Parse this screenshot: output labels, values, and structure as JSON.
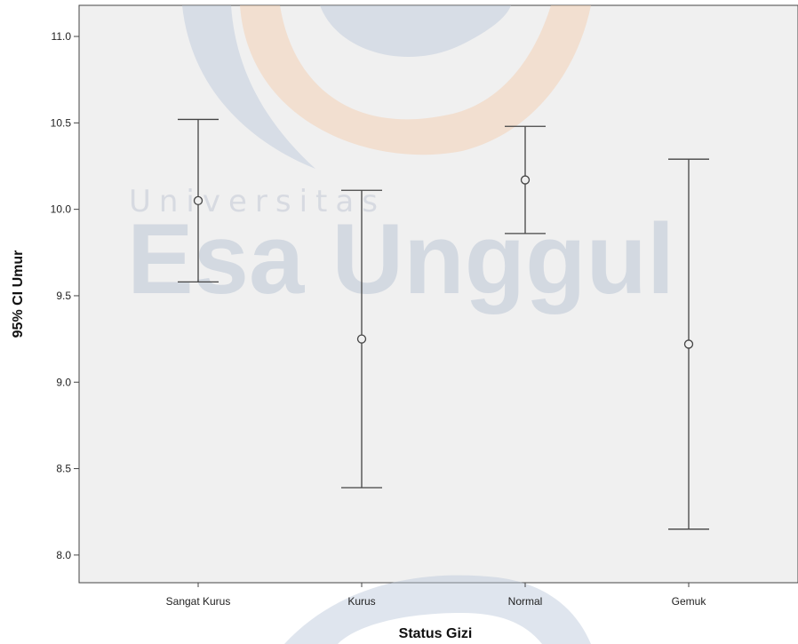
{
  "watermark": {
    "line1": "Universitas",
    "line2": "Esa Unggul",
    "colors": {
      "blue": "#9fb0c8",
      "orange": "#f3c9a8"
    }
  },
  "chart_data": {
    "type": "errorbar",
    "xlabel": "Status Gizi",
    "ylabel": "95% CI Umur",
    "categories": [
      "Sangat Kurus",
      "Kurus",
      "Normal",
      "Gemuk"
    ],
    "mean": [
      10.05,
      9.25,
      10.17,
      9.22
    ],
    "ci_lower": [
      9.58,
      8.39,
      9.86,
      8.15
    ],
    "ci_upper": [
      10.52,
      10.11,
      10.48,
      10.29
    ],
    "ylim": [
      7.84,
      11.18
    ],
    "yticks": [
      8.0,
      8.5,
      9.0,
      9.5,
      10.0,
      10.5,
      11.0
    ],
    "ytick_labels": [
      "8.0",
      "8.5",
      "9.0",
      "9.5",
      "10.0",
      "10.5",
      "11.0"
    ],
    "grid": false,
    "colors": {
      "plot_background": "#f0f0f0",
      "marks": "#444444"
    }
  }
}
